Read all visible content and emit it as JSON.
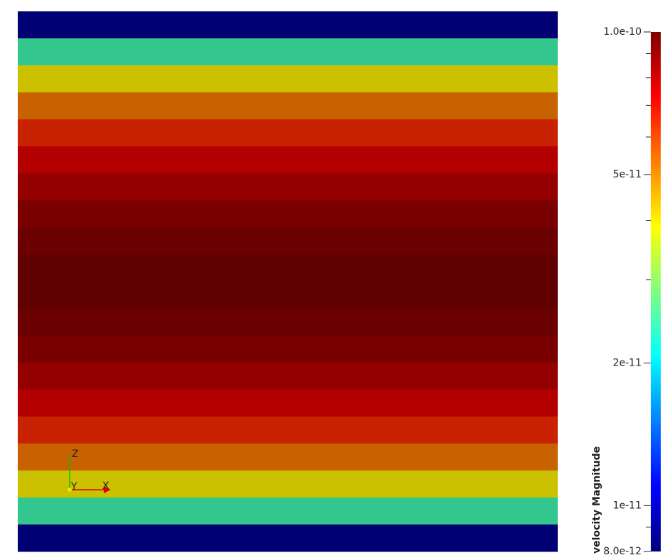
{
  "view": {
    "bands": [
      "#000072",
      "#33c68d",
      "#cbc100",
      "#c86200",
      "#c82200",
      "#b40000",
      "#940000",
      "#7a0000",
      "#6a0000",
      "#600000",
      "#600000",
      "#6a0000",
      "#7a0000",
      "#940000",
      "#b40000",
      "#c82200",
      "#c86200",
      "#cbc100",
      "#33c68d",
      "#000072"
    ],
    "triad": {
      "x": "X",
      "y": "Y",
      "z": "Z",
      "x_color": "#e00000",
      "y_color": "#e8e800",
      "z_color": "#00c000"
    }
  },
  "colorbar": {
    "title": "velocity Magnitude",
    "log": true,
    "lim": [
      8e-12,
      1e-10
    ],
    "colors": [
      "#00007f",
      "#0000ff",
      "#007fff",
      "#00ffff",
      "#7fff7f",
      "#ffff00",
      "#ff7f00",
      "#ff0000",
      "#7f0000"
    ],
    "ticks": [
      {
        "value": 1e-10,
        "label": "1.0e-10"
      },
      {
        "value": 5e-11,
        "label": "5e-11"
      },
      {
        "value": 2e-11,
        "label": "2e-11"
      },
      {
        "value": 1e-11,
        "label": "1e-11"
      },
      {
        "value": 8e-12,
        "label": "8.0e-12"
      }
    ],
    "minor_ticks": [
      9e-11,
      8e-11,
      7e-11,
      6e-11,
      4e-11,
      3e-11,
      9e-12
    ]
  }
}
